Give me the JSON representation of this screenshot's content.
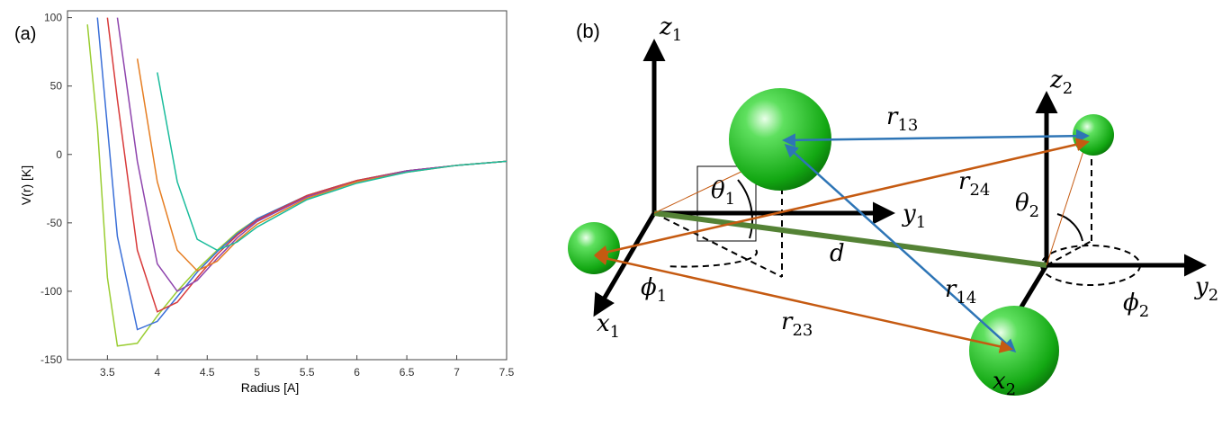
{
  "chart_data": {
    "type": "line",
    "panel_label": "(a)",
    "xlabel": "Radius [A]",
    "ylabel": "V(r) [K]",
    "x": [
      3.2,
      3.3,
      3.4,
      3.5,
      3.6,
      3.8,
      4.0,
      4.2,
      4.4,
      4.6,
      4.8,
      5.0,
      5.5,
      6.0,
      6.5,
      7.0,
      7.5
    ],
    "series": [
      {
        "color": "#9acd32",
        "values": [
          null,
          95,
          20,
          -90,
          -140,
          -138,
          -118,
          -100,
          -84,
          -70,
          -57,
          -47,
          -30,
          -19,
          -12,
          -8,
          -5
        ]
      },
      {
        "color": "#3a6fd8",
        "values": [
          null,
          null,
          100,
          20,
          -60,
          -128,
          -122,
          -104,
          -86,
          -71,
          -58,
          -47,
          -30,
          -19,
          -12,
          -8,
          -5
        ]
      },
      {
        "color": "#d83a3a",
        "values": [
          null,
          null,
          null,
          100,
          40,
          -70,
          -115,
          -108,
          -90,
          -73,
          -59,
          -48,
          -30,
          -19,
          -12,
          -8,
          -5
        ]
      },
      {
        "color": "#8e44ad",
        "values": [
          null,
          null,
          null,
          null,
          100,
          -5,
          -80,
          -100,
          -92,
          -76,
          -61,
          -49,
          -31,
          -20,
          -12,
          -8,
          -5
        ]
      },
      {
        "color": "#e67e22",
        "values": [
          null,
          null,
          null,
          null,
          null,
          70,
          -20,
          -70,
          -85,
          -78,
          -63,
          -51,
          -32,
          -20,
          -13,
          -8,
          -5
        ]
      },
      {
        "color": "#1abc9c",
        "values": [
          null,
          null,
          null,
          null,
          null,
          null,
          60,
          -20,
          -62,
          -70,
          -64,
          -53,
          -33,
          -21,
          -13,
          -8,
          -5
        ]
      }
    ],
    "xlim": [
      3.1,
      7.5
    ],
    "xticks": [
      3.5,
      4,
      4.5,
      5,
      5.5,
      6,
      6.5,
      7,
      7.5
    ],
    "ylim": [
      -150,
      105
    ],
    "yticks": [
      -150,
      -100,
      -50,
      0,
      50,
      100
    ]
  },
  "diagram": {
    "panel_label": "(b)",
    "labels": [
      {
        "symbol": "z",
        "subscript": "1"
      },
      {
        "symbol": "y",
        "subscript": "1"
      },
      {
        "symbol": "x",
        "subscript": "1"
      },
      {
        "symbol": "z",
        "subscript": "2"
      },
      {
        "symbol": "y",
        "subscript": "2"
      },
      {
        "symbol": "x",
        "subscript": "2"
      },
      {
        "symbol": "r",
        "subscript": "13"
      },
      {
        "symbol": "r",
        "subscript": "24"
      },
      {
        "symbol": "r",
        "subscript": "14"
      },
      {
        "symbol": "r",
        "subscript": "23"
      },
      {
        "symbol": "d"
      },
      {
        "symbol": "θ",
        "subscript": "1"
      },
      {
        "symbol": "θ",
        "subscript": "2"
      },
      {
        "symbol": "ϕ",
        "subscript": "1"
      },
      {
        "symbol": "ϕ",
        "subscript": "2"
      }
    ]
  }
}
